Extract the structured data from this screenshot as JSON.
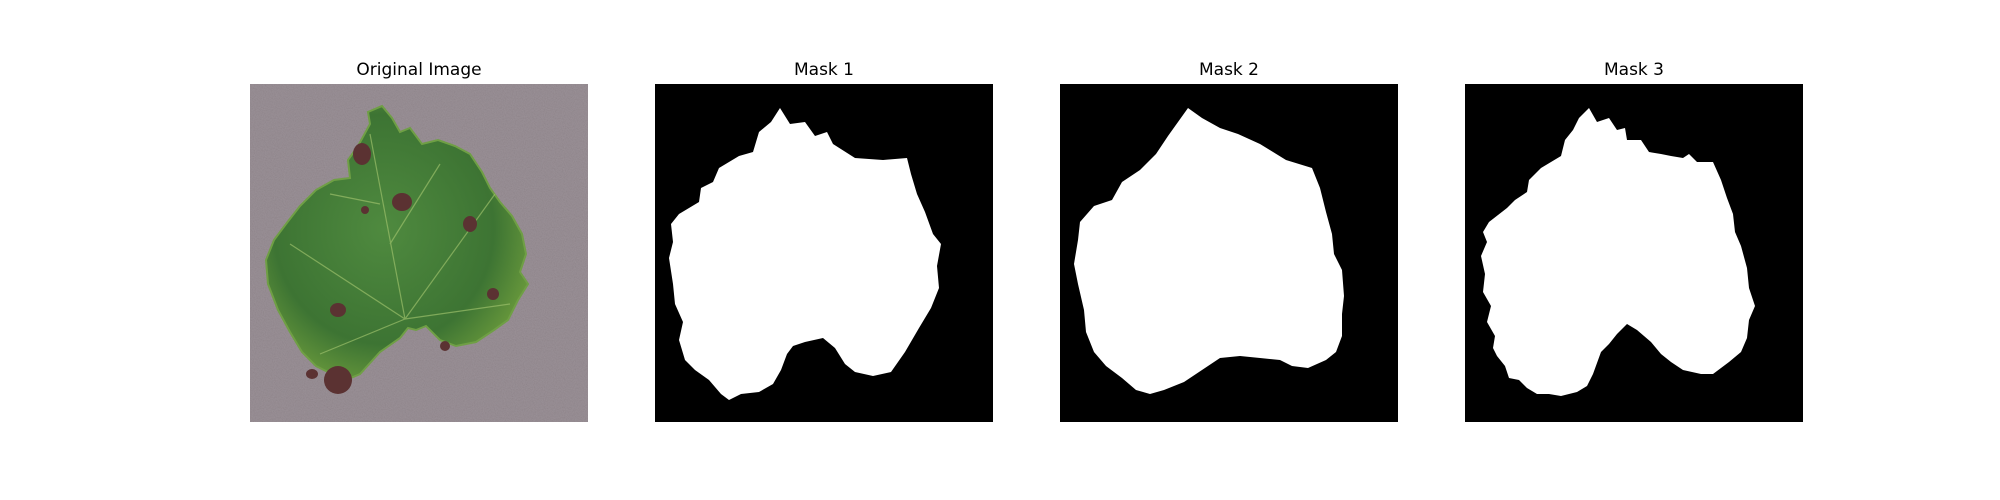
{
  "panels": [
    {
      "title": "Original Image"
    },
    {
      "title": "Mask 1"
    },
    {
      "title": "Mask 2"
    },
    {
      "title": "Mask 3"
    }
  ],
  "colors": {
    "background": "#9a9096",
    "leaf": "#3f7a35",
    "leaf_light": "#5f9a48",
    "lesion": "#5a3232",
    "mask_fg": "#ffffff",
    "mask_bg": "#000000"
  }
}
